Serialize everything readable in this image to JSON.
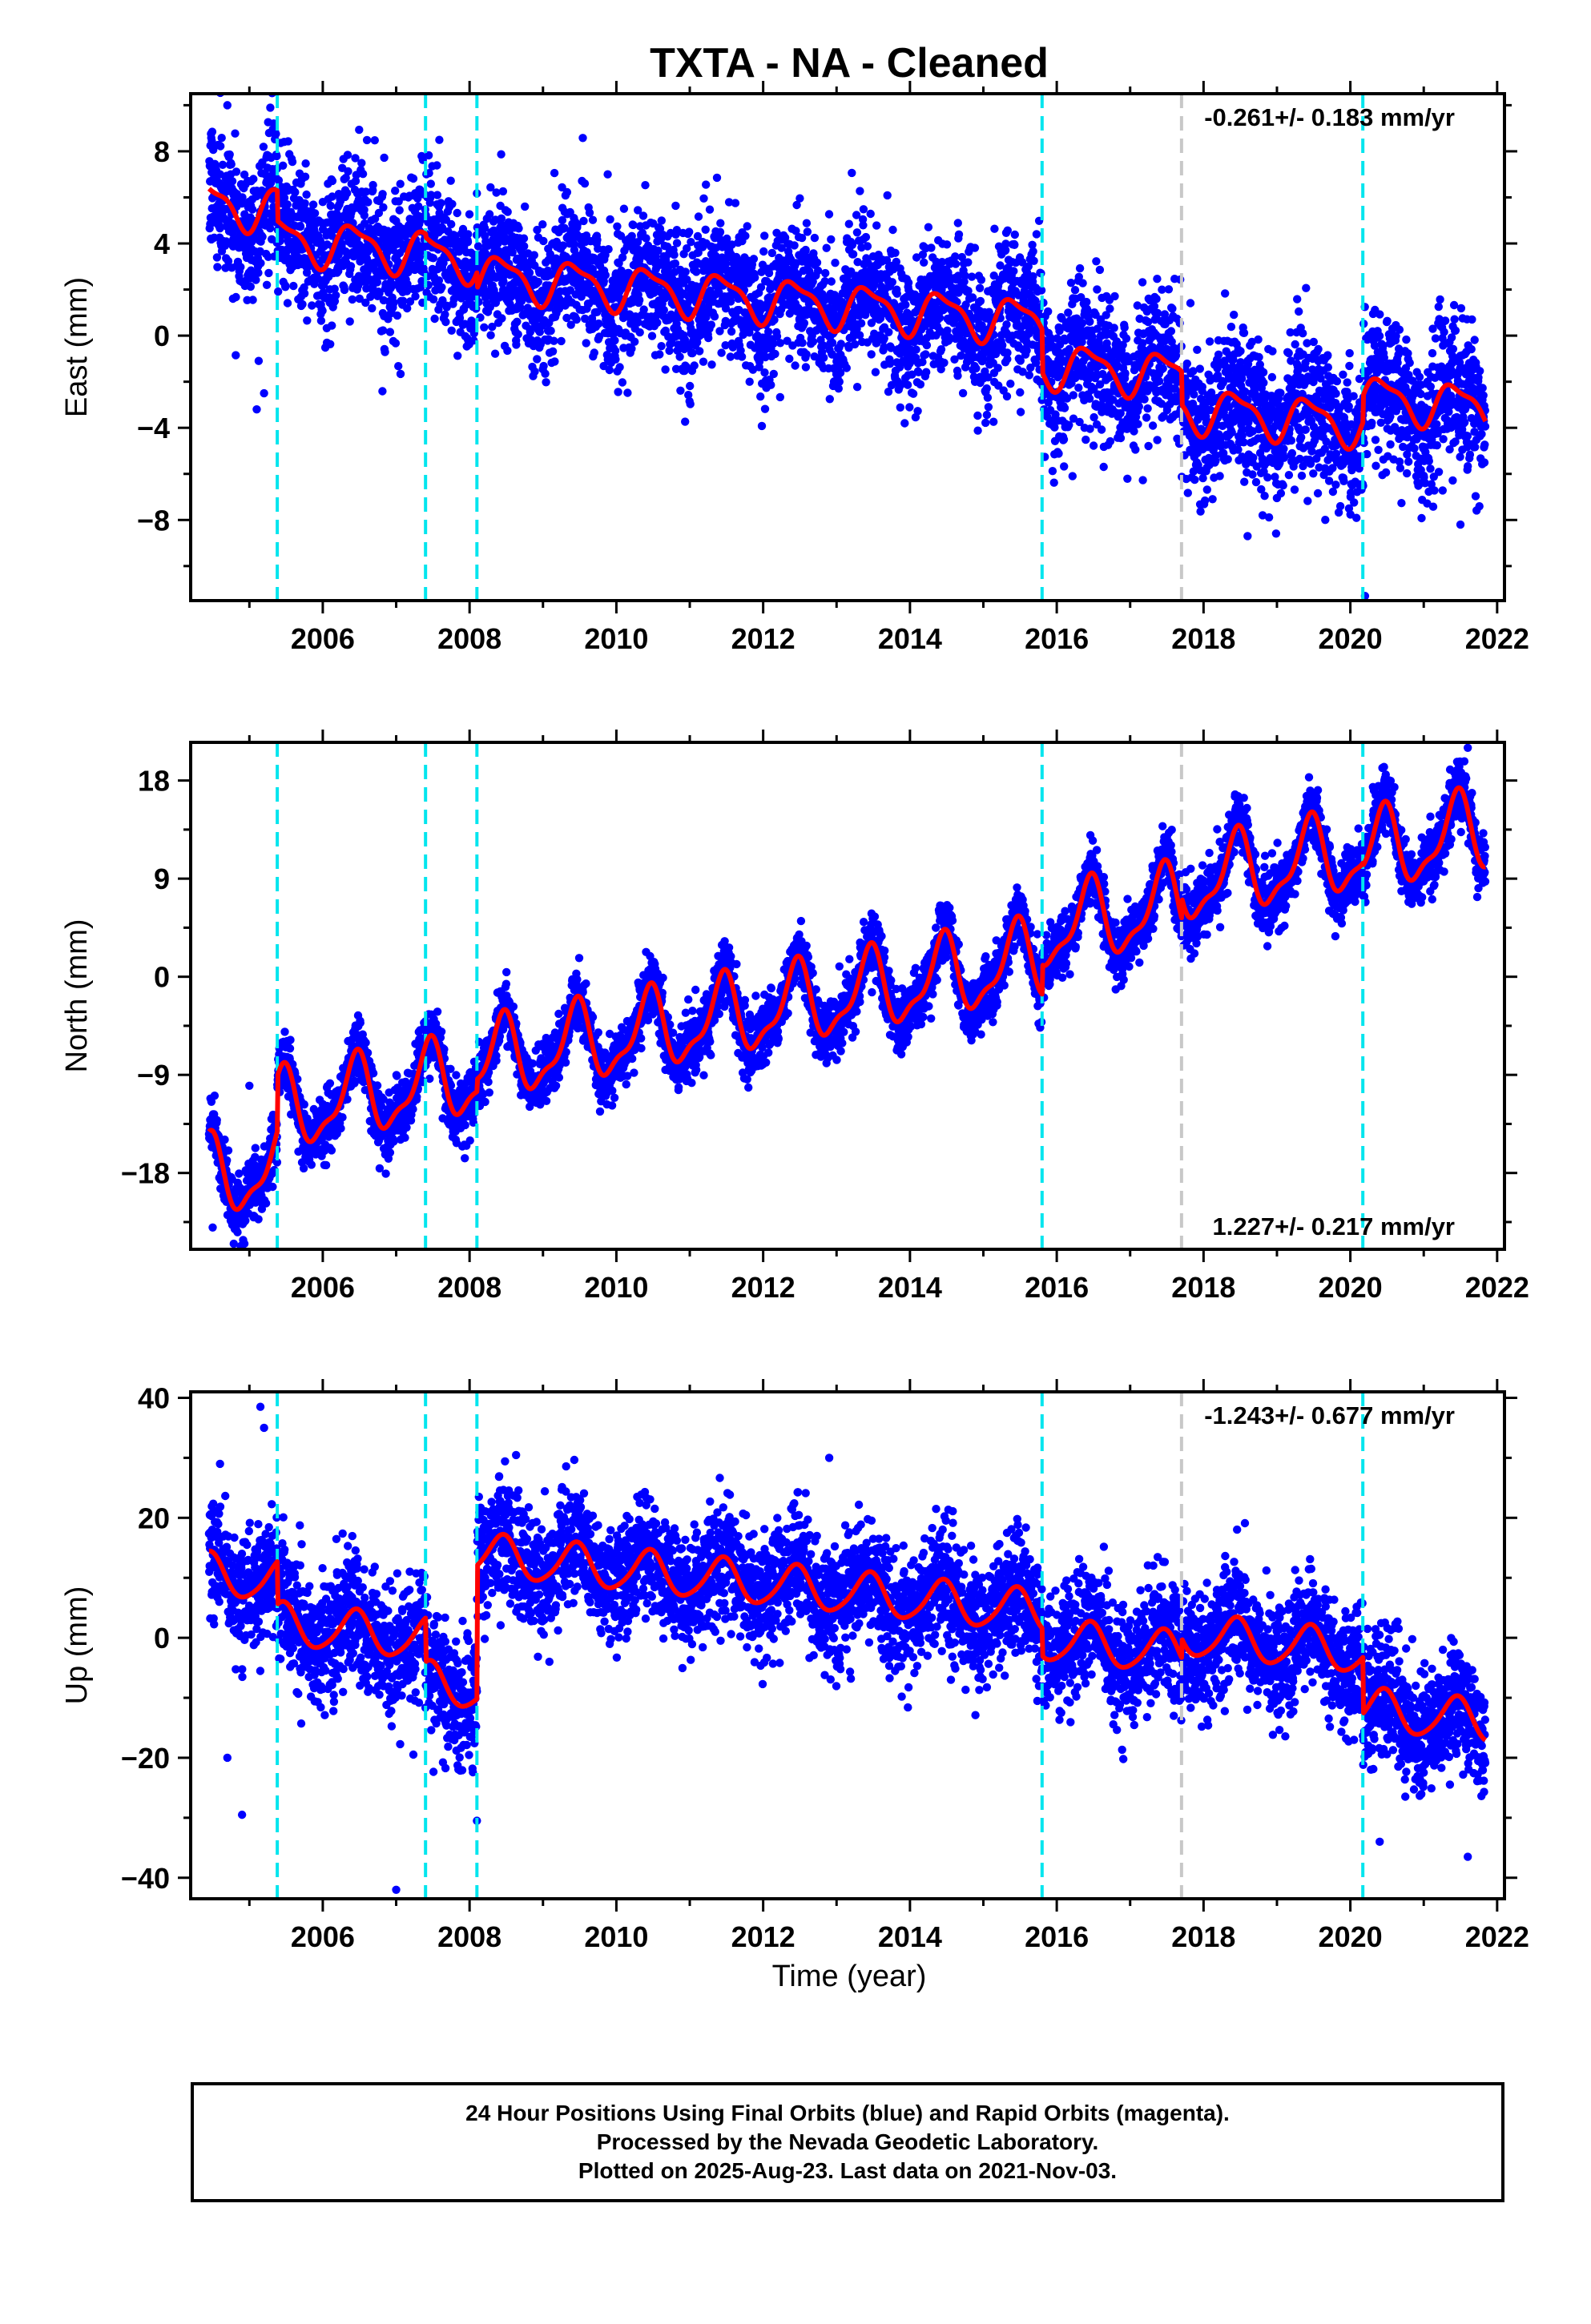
{
  "title": "TXTA  - NA - Cleaned",
  "xlabel": "Time (year)",
  "footer": {
    "line1": "24 Hour Positions Using Final Orbits (blue) and Rapid Orbits (magenta).",
    "line2": "Processed by the Nevada Geodetic Laboratory.",
    "line3": "Plotted on 2025-Aug-23. Last data on 2021-Nov-03."
  },
  "colors": {
    "points": "#0000ff",
    "model": "#ff0000",
    "steps_equipment": "#00e5ee",
    "steps_other": "#c8c8c8",
    "axis": "#000000"
  },
  "chart_data": [
    {
      "type": "scatter",
      "panel": "east",
      "ylabel": "East (mm)",
      "velocity_label": "-0.261+/- 0.183 mm/yr",
      "label_position": "top-right",
      "xlim": [
        2004.2,
        2022.1
      ],
      "ylim": [
        -11.5,
        10.5
      ],
      "xticks": [
        2006,
        2008,
        2010,
        2012,
        2014,
        2016,
        2018,
        2020,
        2022
      ],
      "yticks": [
        8,
        4,
        0,
        -4,
        -8
      ],
      "ytick_labels": [
        "8",
        "4",
        "0",
        "−4",
        "−8"
      ],
      "grid": false,
      "steps_cyan": [
        2005.38,
        2007.4,
        2008.1,
        2015.8,
        2020.17
      ],
      "steps_gray": [
        2017.7
      ],
      "data_range": [
        2004.45,
        2021.84
      ],
      "model_segments": [
        {
          "t0": 2004.45,
          "t1": 2005.38,
          "v": 5.6,
          "a1": 0.9,
          "a2": -0.3
        },
        {
          "t0": 2005.38,
          "t1": 2007.4,
          "v": 3.9,
          "a1": 0.9,
          "a2": -0.3
        },
        {
          "t0": 2007.4,
          "t1": 2008.1,
          "v": 3.4,
          "a1": 0.9,
          "a2": -0.3
        },
        {
          "t0": 2008.1,
          "t1": 2015.8,
          "v": 1.6,
          "a1": 0.9,
          "a2": -0.3
        },
        {
          "t0": 2015.8,
          "t1": 2017.7,
          "v": -1.5,
          "a1": 0.9,
          "a2": -0.3
        },
        {
          "t0": 2017.7,
          "t1": 2020.17,
          "v": -3.5,
          "a1": 0.9,
          "a2": -0.3
        },
        {
          "t0": 2020.17,
          "t1": 2021.84,
          "v": -2.9,
          "a1": 0.9,
          "a2": -0.3
        }
      ],
      "velocity": -0.261,
      "noise": 1.5,
      "outliers": [
        [
          2004.7,
          10.0
        ],
        [
          2005.1,
          -3.2
        ],
        [
          2005.2,
          -2.5
        ],
        [
          2006.0,
          5.8
        ],
        [
          2018.6,
          -8.7
        ],
        [
          2020.2,
          -11.3
        ],
        [
          2021.5,
          -8.2
        ]
      ]
    },
    {
      "type": "scatter",
      "panel": "north",
      "ylabel": "North (mm)",
      "velocity_label": "1.227+/- 0.217 mm/yr",
      "label_position": "bottom-right",
      "xlim": [
        2004.2,
        2022.1
      ],
      "ylim": [
        -25,
        21.5
      ],
      "xticks": [
        2006,
        2008,
        2010,
        2012,
        2014,
        2016,
        2018,
        2020,
        2022
      ],
      "yticks": [
        18,
        9,
        0,
        -9,
        -18
      ],
      "ytick_labels": [
        "18",
        "9",
        "0",
        "−9",
        "−18"
      ],
      "grid": false,
      "steps_cyan": [
        2005.38,
        2007.4,
        2008.1,
        2015.8,
        2020.17
      ],
      "steps_gray": [
        2017.7
      ],
      "data_range": [
        2004.45,
        2021.84
      ],
      "model_segments": [
        {
          "t0": 2004.45,
          "t1": 2005.38,
          "v": -18.0,
          "a1": 3.4,
          "a2": 1.2
        },
        {
          "t0": 2005.38,
          "t1": 2007.4,
          "v": -11.2,
          "a1": 3.4,
          "a2": 1.2
        },
        {
          "t0": 2007.4,
          "t1": 2008.1,
          "v": -9.5,
          "a1": 3.4,
          "a2": 1.2
        },
        {
          "t0": 2008.1,
          "t1": 2015.8,
          "v": -3.2,
          "a1": 3.4,
          "a2": 1.2
        },
        {
          "t0": 2015.8,
          "t1": 2017.7,
          "v": 5.4,
          "a1": 3.4,
          "a2": 1.2
        },
        {
          "t0": 2017.7,
          "t1": 2020.17,
          "v": 10.0,
          "a1": 3.4,
          "a2": 1.2
        },
        {
          "t0": 2020.17,
          "t1": 2021.84,
          "v": 12.3,
          "a1": 3.4,
          "a2": 1.2
        }
      ],
      "velocity": 1.227,
      "noise": 1.4,
      "outliers": [
        [
          2004.5,
          -23.0
        ],
        [
          2005.0,
          -10.0
        ],
        [
          2021.6,
          21.0
        ]
      ]
    },
    {
      "type": "scatter",
      "panel": "up",
      "ylabel": "Up (mm)",
      "velocity_label": "-1.243+/- 0.677 mm/yr",
      "label_position": "top-right",
      "xlim": [
        2004.2,
        2022.1
      ],
      "ylim": [
        -43.5,
        41
      ],
      "xticks": [
        2006,
        2008,
        2010,
        2012,
        2014,
        2016,
        2018,
        2020,
        2022
      ],
      "yticks": [
        40,
        20,
        0,
        -20,
        -40
      ],
      "ytick_labels": [
        "40",
        "20",
        "0",
        "−20",
        "−40"
      ],
      "grid": false,
      "steps_cyan": [
        2005.38,
        2007.4,
        2008.1,
        2015.8,
        2020.17
      ],
      "steps_gray": [
        2017.7
      ],
      "data_range": [
        2004.45,
        2021.84
      ],
      "model_segments": [
        {
          "t0": 2004.45,
          "t1": 2005.38,
          "v": 10.0,
          "a1": 3.5,
          "a2": 0.5
        },
        {
          "t0": 2005.38,
          "t1": 2007.4,
          "v": 1.0,
          "a1": 3.5,
          "a2": 0.5
        },
        {
          "t0": 2007.4,
          "t1": 2008.1,
          "v": -8.0,
          "a1": 3.5,
          "a2": 0.5
        },
        {
          "t0": 2008.1,
          "t1": 2015.8,
          "v": 9.0,
          "a1": 3.5,
          "a2": 0.5
        },
        {
          "t0": 2015.8,
          "t1": 2017.7,
          "v": -1.5,
          "a1": 3.5,
          "a2": 0.5
        },
        {
          "t0": 2017.7,
          "t1": 2020.17,
          "v": -1.0,
          "a1": 3.5,
          "a2": 0.5
        },
        {
          "t0": 2020.17,
          "t1": 2021.84,
          "v": -13.0,
          "a1": 3.5,
          "a2": 0.5
        }
      ],
      "velocity": -1.243,
      "noise": 5.0,
      "outliers": [
        [
          2005.15,
          38.5
        ],
        [
          2005.2,
          35.0
        ],
        [
          2004.6,
          29.0
        ],
        [
          2004.7,
          -20.0
        ],
        [
          2004.9,
          -29.5
        ],
        [
          2007.0,
          -42.0
        ],
        [
          2008.1,
          -30.5
        ],
        [
          2012.9,
          30.0
        ],
        [
          2020.4,
          -34.0
        ],
        [
          2021.6,
          -36.5
        ]
      ]
    }
  ]
}
